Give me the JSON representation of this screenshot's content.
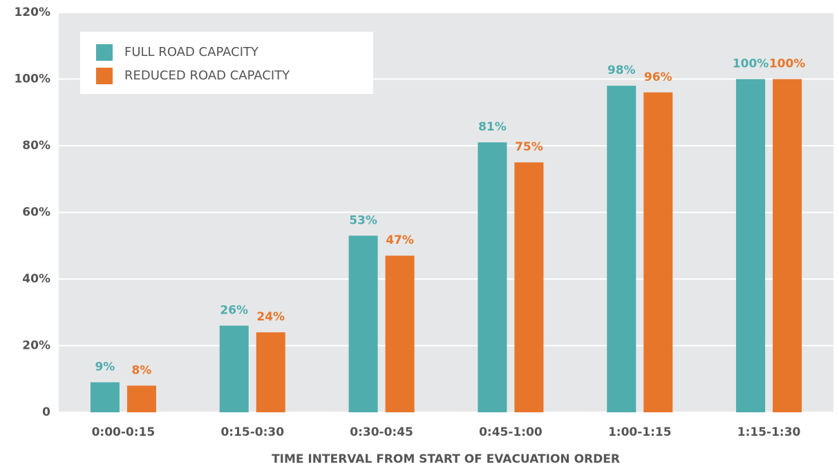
{
  "chart_data": {
    "type": "bar",
    "x_label": "TIME INTERVAL FROM START OF EVACUATION ORDER",
    "categories": [
      "0:00-0:15",
      "0:15-0:30",
      "0:30-0:45",
      "0:45-1:00",
      "1:00-1:15",
      "1:15-1:30"
    ],
    "series": [
      {
        "name": "FULL ROAD CAPACITY",
        "color": "#4fadae",
        "values": [
          9,
          26,
          53,
          81,
          98,
          100
        ],
        "value_labels": [
          "9%",
          "26%",
          "53%",
          "81%",
          "98%",
          "100%"
        ]
      },
      {
        "name": "REDUCED ROAD CAPACITY",
        "color": "#e8762a",
        "values": [
          8,
          24,
          47,
          75,
          96,
          100
        ],
        "value_labels": [
          "8%",
          "24%",
          "47%",
          "75%",
          "96%",
          "100%"
        ]
      }
    ],
    "ylim": [
      0,
      120
    ],
    "yticks": [
      0,
      {
        "value": 20,
        "label": "20%"
      },
      {
        "value": 40,
        "label": "40%"
      },
      {
        "value": 60,
        "label": "60%"
      },
      {
        "value": 80,
        "label": "80%"
      },
      {
        "value": 100,
        "label": "100%"
      },
      {
        "value": 120,
        "label": "120%"
      }
    ],
    "grid": true,
    "legend": "upper left"
  }
}
